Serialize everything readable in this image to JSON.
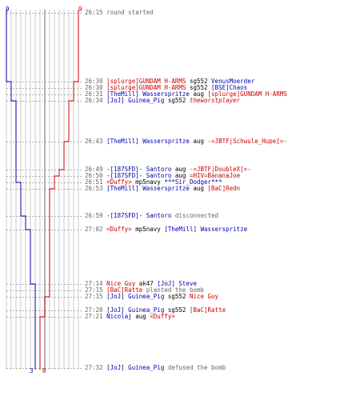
{
  "scores": {
    "blue_start": "9",
    "red_start": "9",
    "blue_end": "3",
    "red_end": "0"
  },
  "colors": {
    "blue": "#0000aa",
    "red": "#cc0000",
    "gray": "#666666"
  },
  "events": [
    {
      "time": "26:15",
      "parts": [
        {
          "text": "round started",
          "c": "gray"
        }
      ]
    },
    {
      "time": "26:30",
      "parts": [
        {
          "text": "[splurge]GUNDAM H-ARMS",
          "c": "red"
        },
        {
          "text": " sg552 ",
          "c": "black"
        },
        {
          "text": "VenusMoerder",
          "c": "blue"
        }
      ]
    },
    {
      "time": "26:30",
      "parts": [
        {
          "text": "[splurge]GUNDAM H-ARMS",
          "c": "red"
        },
        {
          "text": " sg552 ",
          "c": "black"
        },
        {
          "text": "[BSE]Chaos",
          "c": "blue"
        }
      ]
    },
    {
      "time": "26:31",
      "parts": [
        {
          "text": "[TheMill] Wasserspritze",
          "c": "blue"
        },
        {
          "text": " aug ",
          "c": "black"
        },
        {
          "text": "[splurge]GUNDAM H-ARMS",
          "c": "red"
        }
      ]
    },
    {
      "time": "26:34",
      "parts": [
        {
          "text": "[JoJ] Guinea_Pig",
          "c": "blue"
        },
        {
          "text": " sg552 ",
          "c": "black"
        },
        {
          "text": "theworstplayer",
          "c": "red",
          "i": true
        }
      ]
    },
    {
      "time": "26:43",
      "parts": [
        {
          "text": "[TheMill] Wasserspritze",
          "c": "blue"
        },
        {
          "text": " aug ",
          "c": "black"
        },
        {
          "text": "-=JBTF|Schwule_Hupe[=-",
          "c": "red"
        }
      ]
    },
    {
      "time": "26:49",
      "parts": [
        {
          "text": "-[187SFD]- Santoro",
          "c": "blue"
        },
        {
          "text": " aug ",
          "c": "black"
        },
        {
          "text": "-=JBTF|DoubleX[=-",
          "c": "red"
        }
      ]
    },
    {
      "time": "26:50",
      "parts": [
        {
          "text": "-[187SFD]- Santoro",
          "c": "blue"
        },
        {
          "text": " aug ",
          "c": "black"
        },
        {
          "text": "=HIV=BananaJoe",
          "c": "red"
        }
      ]
    },
    {
      "time": "26:51",
      "parts": [
        {
          "text": "<Duffy>",
          "c": "red"
        },
        {
          "text": " mp5navy ",
          "c": "black"
        },
        {
          "text": "***Sir_Dodger***",
          "c": "blue"
        }
      ]
    },
    {
      "time": "26:53",
      "parts": [
        {
          "text": "[TheMill] Wasserspritze",
          "c": "blue"
        },
        {
          "text": " aug ",
          "c": "black"
        },
        {
          "text": "[BaC]Redn",
          "c": "red"
        }
      ]
    },
    {
      "time": "26:59",
      "parts": [
        {
          "text": "-[187SFD]- Santoro",
          "c": "blue"
        },
        {
          "text": " disconnected",
          "c": "gray"
        }
      ]
    },
    {
      "time": "27:02",
      "parts": [
        {
          "text": "<Duffy>",
          "c": "red"
        },
        {
          "text": " mp5navy ",
          "c": "black"
        },
        {
          "text": "[TheMill] Wasserspritze",
          "c": "blue"
        }
      ]
    },
    {
      "time": "27:14",
      "parts": [
        {
          "text": "Nice Guy",
          "c": "red"
        },
        {
          "text": " ak47 ",
          "c": "black"
        },
        {
          "text": "[JoJ] Steve",
          "c": "blue"
        }
      ]
    },
    {
      "time": "27:15",
      "parts": [
        {
          "text": "[BaC]Ratte",
          "c": "red"
        },
        {
          "text": " planted the bomb",
          "c": "gray"
        }
      ]
    },
    {
      "time": "27:15",
      "parts": [
        {
          "text": "[JoJ] Guinea_Pig",
          "c": "blue"
        },
        {
          "text": " sg552 ",
          "c": "black"
        },
        {
          "text": "Nice Guy",
          "c": "red"
        }
      ]
    },
    {
      "time": "27:20",
      "parts": [
        {
          "text": "[JoJ] Guinea_Pig",
          "c": "blue"
        },
        {
          "text": " sg552 ",
          "c": "black"
        },
        {
          "text": "[BaC]Ratte",
          "c": "red"
        }
      ]
    },
    {
      "time": "27:21",
      "parts": [
        {
          "text": "Nicolaj",
          "c": "blue"
        },
        {
          "text": " aug ",
          "c": "black"
        },
        {
          "text": "<Duffy>",
          "c": "red"
        }
      ]
    },
    {
      "time": "27:32",
      "parts": [
        {
          "text": "[JoJ] Guinea_Pig",
          "c": "blue"
        },
        {
          "text": " defused the bomb",
          "c": "gray"
        }
      ]
    }
  ]
}
